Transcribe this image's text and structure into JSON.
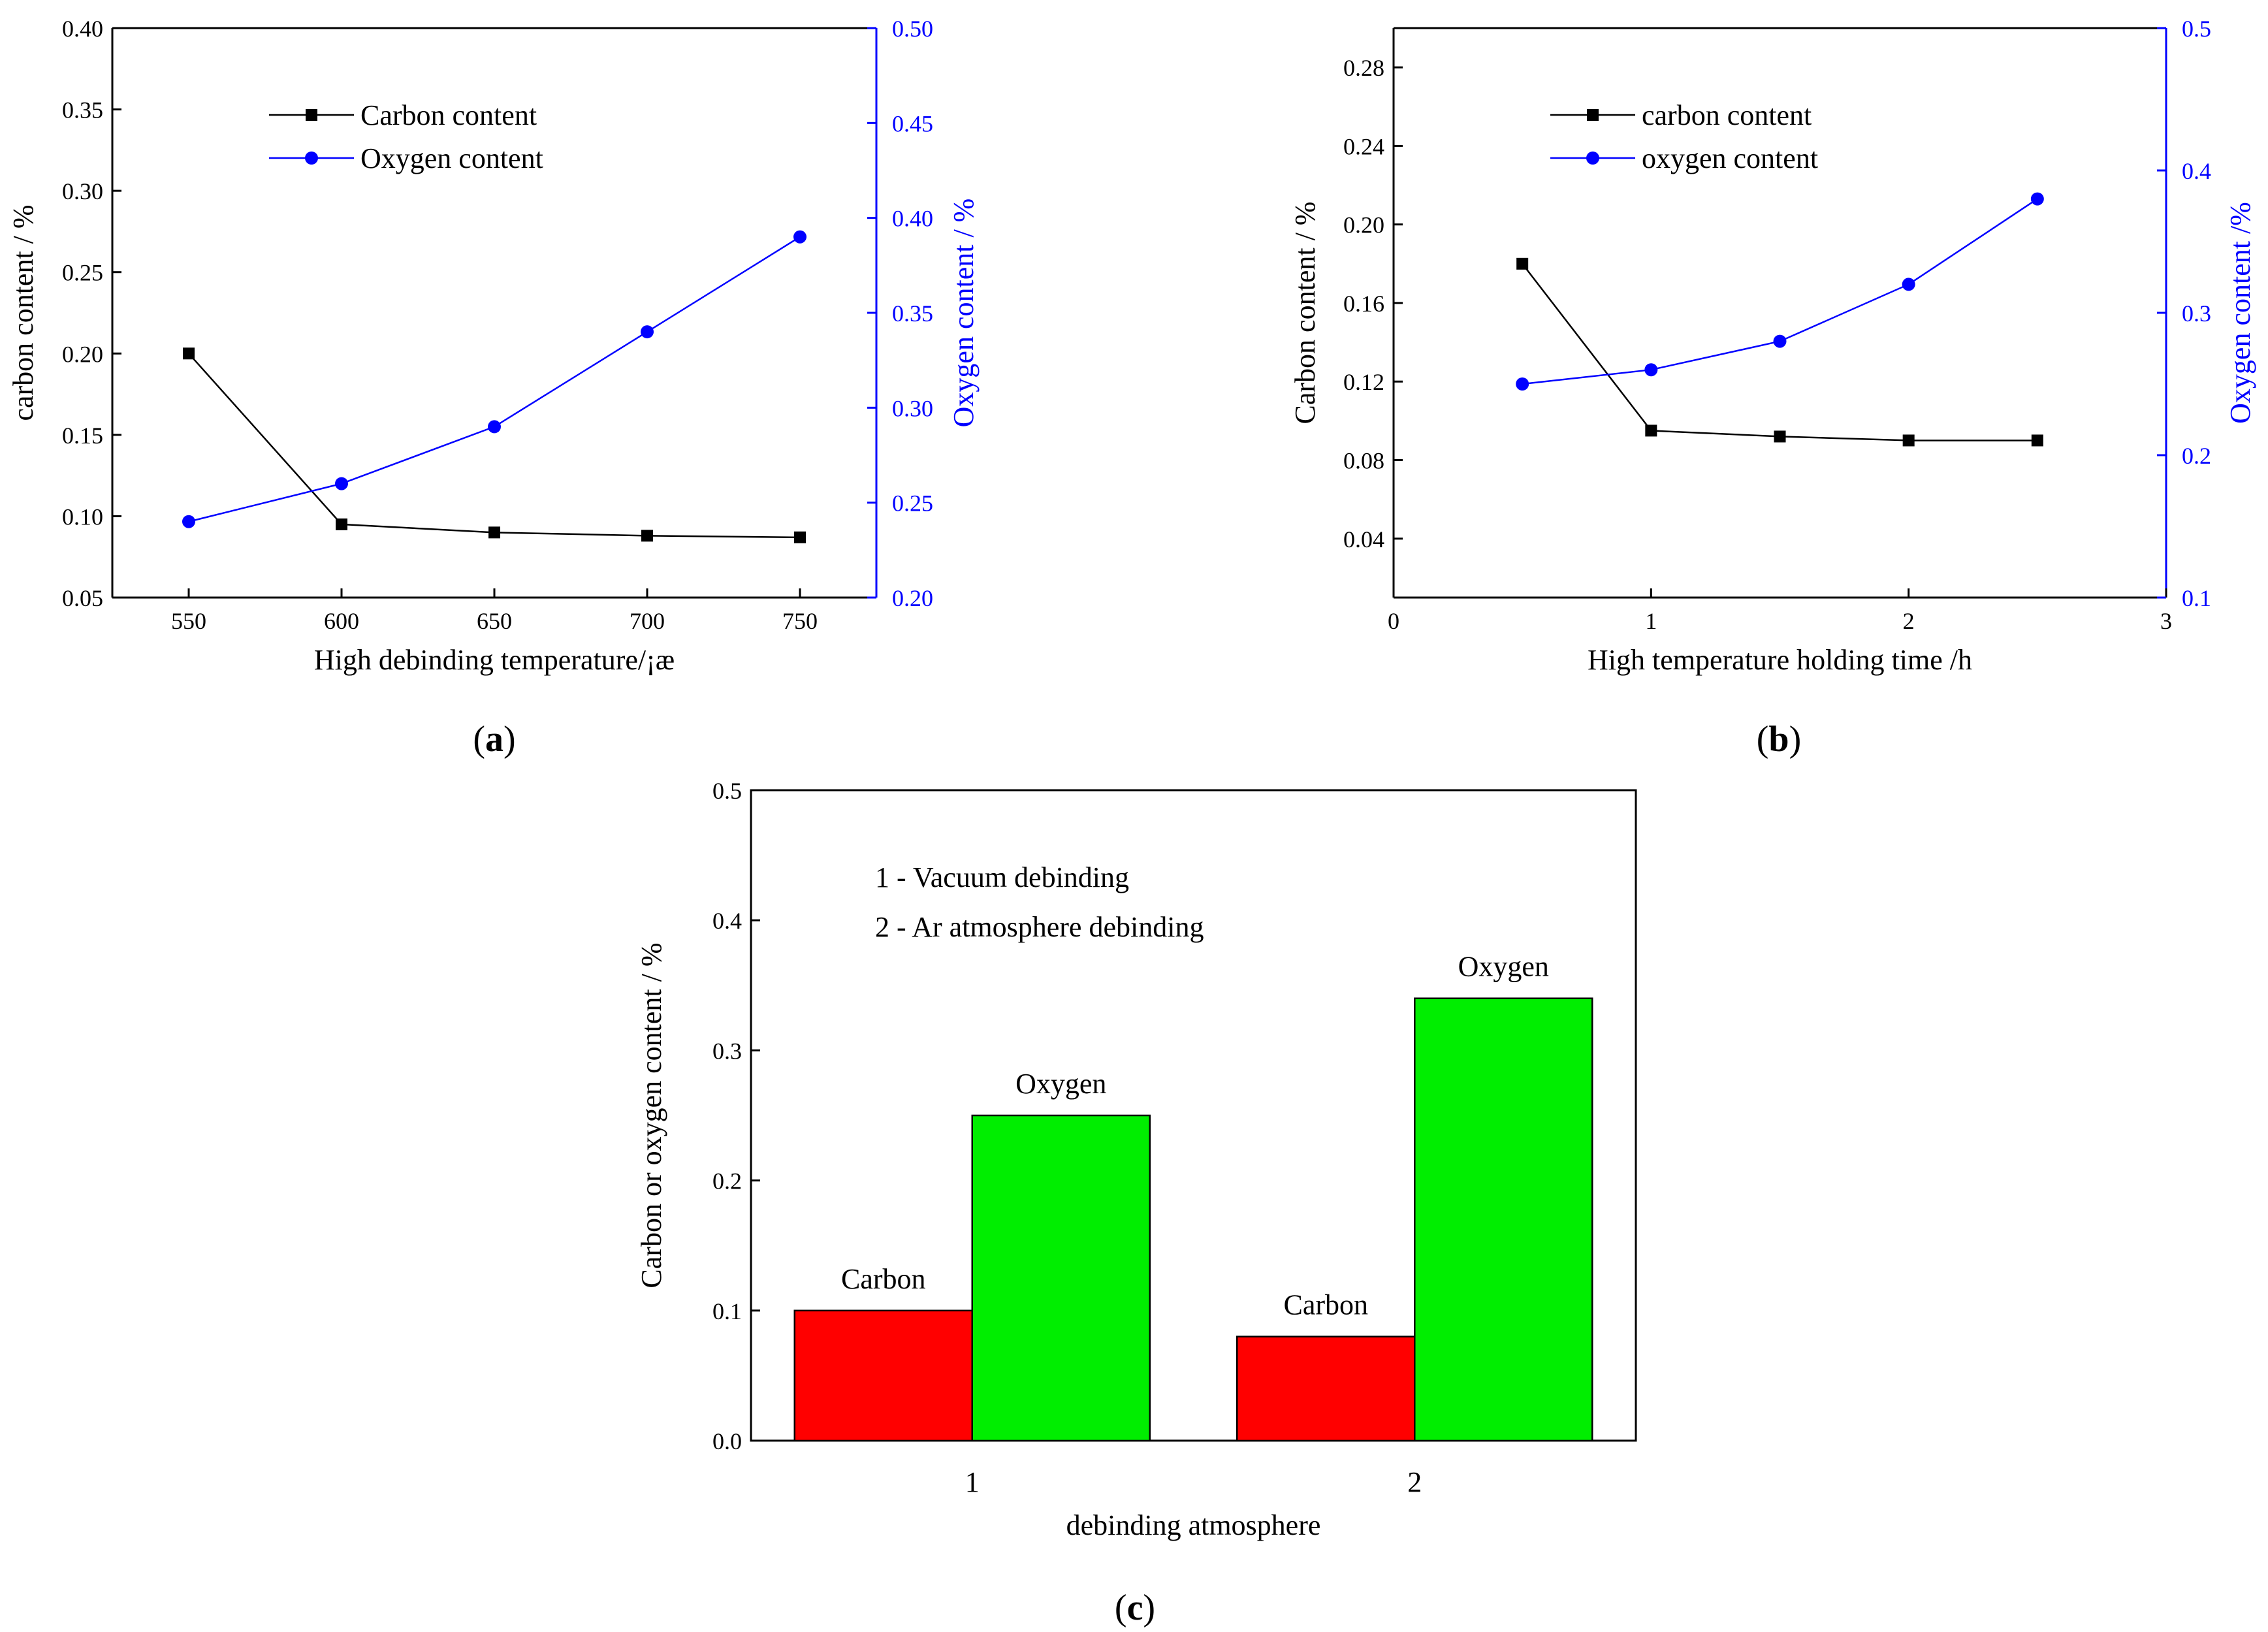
{
  "figure_title": "",
  "panel_labels": [
    {
      "open": "(",
      "letter": "a",
      "close": ")"
    },
    {
      "open": "(",
      "letter": "b",
      "close": ")"
    },
    {
      "open": "(",
      "letter": "c",
      "close": ")"
    }
  ],
  "colors": {
    "carbon_line": "#000000",
    "oxygen_line": "#0000ff",
    "carbon_bar": "#ff0000",
    "oxygen_bar": "#00ee00",
    "axis": "#000000",
    "right_axis": "#0000ff"
  },
  "chart_data": [
    {
      "id": "a",
      "type": "line",
      "x": [
        550,
        600,
        650,
        700,
        750
      ],
      "xlim": [
        525,
        775
      ],
      "xticks": [
        "550",
        "600",
        "650",
        "700",
        "750"
      ],
      "xlabel": "High debinding temperature/¡æ",
      "ylabel": "carbon content / %",
      "ylim": [
        0.05,
        0.4
      ],
      "yticks": [
        "0.05",
        "0.10",
        "0.15",
        "0.20",
        "0.25",
        "0.30",
        "0.35",
        "0.40"
      ],
      "y2label": "Oxygen content / %",
      "y2lim": [
        0.2,
        0.5
      ],
      "y2ticks": [
        "0.20",
        "0.25",
        "0.30",
        "0.35",
        "0.40",
        "0.45",
        "0.50"
      ],
      "legend_position": "top-left",
      "series": [
        {
          "name": "Carbon content",
          "axis": "left",
          "marker": "square",
          "color": "#000000",
          "values": [
            0.2,
            0.095,
            0.09,
            0.088,
            0.087
          ]
        },
        {
          "name": "Oxygen content",
          "axis": "right",
          "marker": "circle",
          "color": "#0000ff",
          "values": [
            0.24,
            0.26,
            0.29,
            0.34,
            0.39
          ]
        }
      ]
    },
    {
      "id": "b",
      "type": "line",
      "x": [
        0.5,
        1,
        1.5,
        2,
        2.5
      ],
      "xlim": [
        0,
        3
      ],
      "xticks": [
        "0",
        "1",
        "2",
        "3"
      ],
      "xlabel": "High temperature holding time /h",
      "ylabel": "Carbon content / %",
      "ylim": [
        0.01,
        0.3
      ],
      "yticks": [
        "0.04",
        "0.08",
        "0.12",
        "0.16",
        "0.20",
        "0.24",
        "0.28"
      ],
      "y2label": "Oxygen content /%",
      "y2lim": [
        0.1,
        0.5
      ],
      "y2ticks": [
        "0.1",
        "0.2",
        "0.3",
        "0.4",
        "0.5"
      ],
      "legend_position": "top-left",
      "series": [
        {
          "name": "carbon content",
          "axis": "left",
          "marker": "square",
          "color": "#000000",
          "values": [
            0.18,
            0.095,
            0.092,
            0.09,
            0.09
          ]
        },
        {
          "name": "oxygen content",
          "axis": "right",
          "marker": "circle",
          "color": "#0000ff",
          "values": [
            0.25,
            0.26,
            0.28,
            0.32,
            0.38
          ]
        }
      ]
    },
    {
      "id": "c",
      "type": "bar",
      "categories": [
        "1",
        "2"
      ],
      "xlabel": "debinding atmosphere",
      "ylabel": "Carbon or oxygen content / %",
      "ylim": [
        0.0,
        0.5
      ],
      "yticks": [
        "0.0",
        "0.1",
        "0.2",
        "0.3",
        "0.4",
        "0.5"
      ],
      "annotations": [
        "1 - Vacuum debinding",
        "2 - Ar atmosphere debinding"
      ],
      "series": [
        {
          "name": "Carbon",
          "color": "#ff0000",
          "values": [
            0.1,
            0.08
          ]
        },
        {
          "name": "Oxygen",
          "color": "#00ee00",
          "values": [
            0.25,
            0.34
          ]
        }
      ]
    }
  ]
}
